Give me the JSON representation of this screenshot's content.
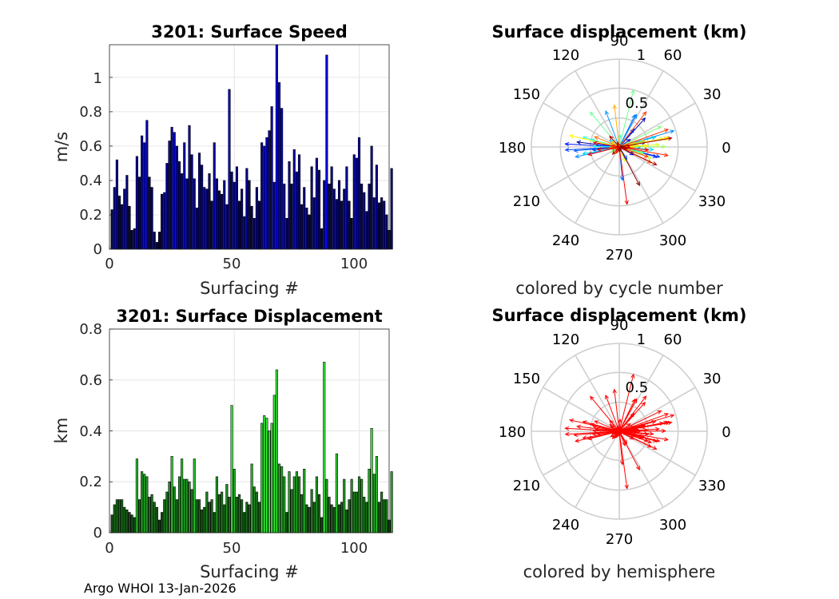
{
  "footer": {
    "text": "Argo WHOI 13-Jan-2026"
  },
  "chart_data": [
    {
      "type": "bar",
      "title": "3201: Surface Speed",
      "xlabel": "Surfacing #",
      "ylabel": "m/s",
      "xlim": [
        0,
        112
      ],
      "ylim": [
        0,
        1.19
      ],
      "xticks": [
        "0",
        "50",
        "100"
      ],
      "yticks": [
        "0",
        "0.2",
        "0.4",
        "0.6",
        "0.8",
        "1"
      ],
      "grid": true,
      "color_scheme": "blue-to-black",
      "values": [
        0.23,
        0.36,
        0.52,
        0.31,
        0.26,
        0.35,
        0.43,
        0.25,
        0.11,
        0.12,
        0.54,
        0.42,
        0.66,
        0.62,
        0.75,
        0.42,
        0.36,
        0.1,
        0.04,
        0.1,
        0.32,
        0.33,
        0.5,
        0.63,
        0.71,
        0.68,
        0.6,
        0.51,
        0.44,
        0.62,
        0.41,
        0.72,
        0.55,
        0.41,
        0.24,
        0.56,
        0.49,
        0.36,
        0.35,
        0.44,
        0.28,
        0.62,
        0.41,
        0.34,
        0.32,
        0.4,
        0.26,
        0.93,
        0.45,
        0.39,
        0.48,
        0.28,
        0.35,
        0.19,
        0.47,
        0.4,
        0.25,
        0.18,
        0.36,
        0.28,
        0.62,
        0.6,
        0.65,
        0.69,
        0.83,
        0.39,
        1.19,
        0.97,
        0.82,
        0.38,
        0.18,
        0.51,
        0.38,
        0.58,
        0.45,
        0.55,
        0.26,
        0.36,
        0.24,
        0.2,
        0.48,
        0.3,
        0.53,
        0.46,
        0.12,
        0.4,
        1.13,
        0.38,
        0.48,
        0.35,
        0.29,
        0.4,
        0.28,
        0.35,
        0.48,
        0.28,
        0.18,
        0.55,
        0.53,
        0.65,
        0.38,
        0.33,
        0.22,
        0.38,
        0.6,
        0.3,
        0.49,
        0.27,
        0.3,
        0.28,
        0.2,
        0.11,
        0.47
      ]
    },
    {
      "type": "bar",
      "title": "3201: Surface Displacement",
      "xlabel": "Surfacing #",
      "ylabel": "km",
      "xlim": [
        0,
        112
      ],
      "ylim": [
        0,
        0.8
      ],
      "xticks": [
        "0",
        "50",
        "100"
      ],
      "yticks": [
        "0",
        "0.2",
        "0.4",
        "0.6",
        "0.8"
      ],
      "grid": true,
      "color_scheme": "green-to-black",
      "values": [
        0.07,
        0.11,
        0.13,
        0.13,
        0.13,
        0.1,
        0.09,
        0.08,
        0.07,
        0.06,
        0.29,
        0.13,
        0.24,
        0.23,
        0.22,
        0.14,
        0.15,
        0.12,
        0.1,
        0.05,
        0.08,
        0.13,
        0.16,
        0.2,
        0.3,
        0.18,
        0.13,
        0.22,
        0.29,
        0.21,
        0.21,
        0.2,
        0.17,
        0.29,
        0.13,
        0.13,
        0.09,
        0.1,
        0.16,
        0.12,
        0.13,
        0.08,
        0.22,
        0.15,
        0.16,
        0.11,
        0.19,
        0.14,
        0.5,
        0.25,
        0.14,
        0.15,
        0.13,
        0.08,
        0.12,
        0.11,
        0.27,
        0.18,
        0.16,
        0.12,
        0.43,
        0.46,
        0.45,
        0.4,
        0.43,
        0.54,
        0.64,
        0.27,
        0.26,
        0.22,
        0.08,
        0.24,
        0.17,
        0.22,
        0.24,
        0.22,
        0.15,
        0.25,
        0.11,
        0.1,
        0.17,
        0.12,
        0.22,
        0.15,
        0.06,
        0.67,
        0.21,
        0.14,
        0.11,
        0.1,
        0.31,
        0.11,
        0.12,
        0.21,
        0.09,
        0.13,
        0.21,
        0.16,
        0.16,
        0.22,
        0.21,
        0.14,
        0.12,
        0.25,
        0.41,
        0.23,
        0.3,
        0.12,
        0.16,
        0.13,
        0.13,
        0.05,
        0.24
      ]
    },
    {
      "type": "polar-arrows",
      "title": "Surface displacement (km)",
      "subtitle": "colored by cycle number",
      "r_max": 1,
      "r_tick_labels": [
        "0.5",
        "1"
      ],
      "angle_labels": [
        "0",
        "30",
        "60",
        "90",
        "120",
        "150",
        "180",
        "210",
        "240",
        "270",
        "300",
        "330"
      ],
      "color_scheme": "jet-by-cycle"
    },
    {
      "type": "polar-arrows",
      "title": "Surface displacement (km)",
      "subtitle": "colored by hemisphere",
      "r_max": 1,
      "r_tick_labels": [
        "0.5",
        "1"
      ],
      "angle_labels": [
        "0",
        "30",
        "60",
        "90",
        "120",
        "150",
        "180",
        "210",
        "240",
        "270",
        "300",
        "330"
      ],
      "color_scheme": "red-north"
    }
  ]
}
